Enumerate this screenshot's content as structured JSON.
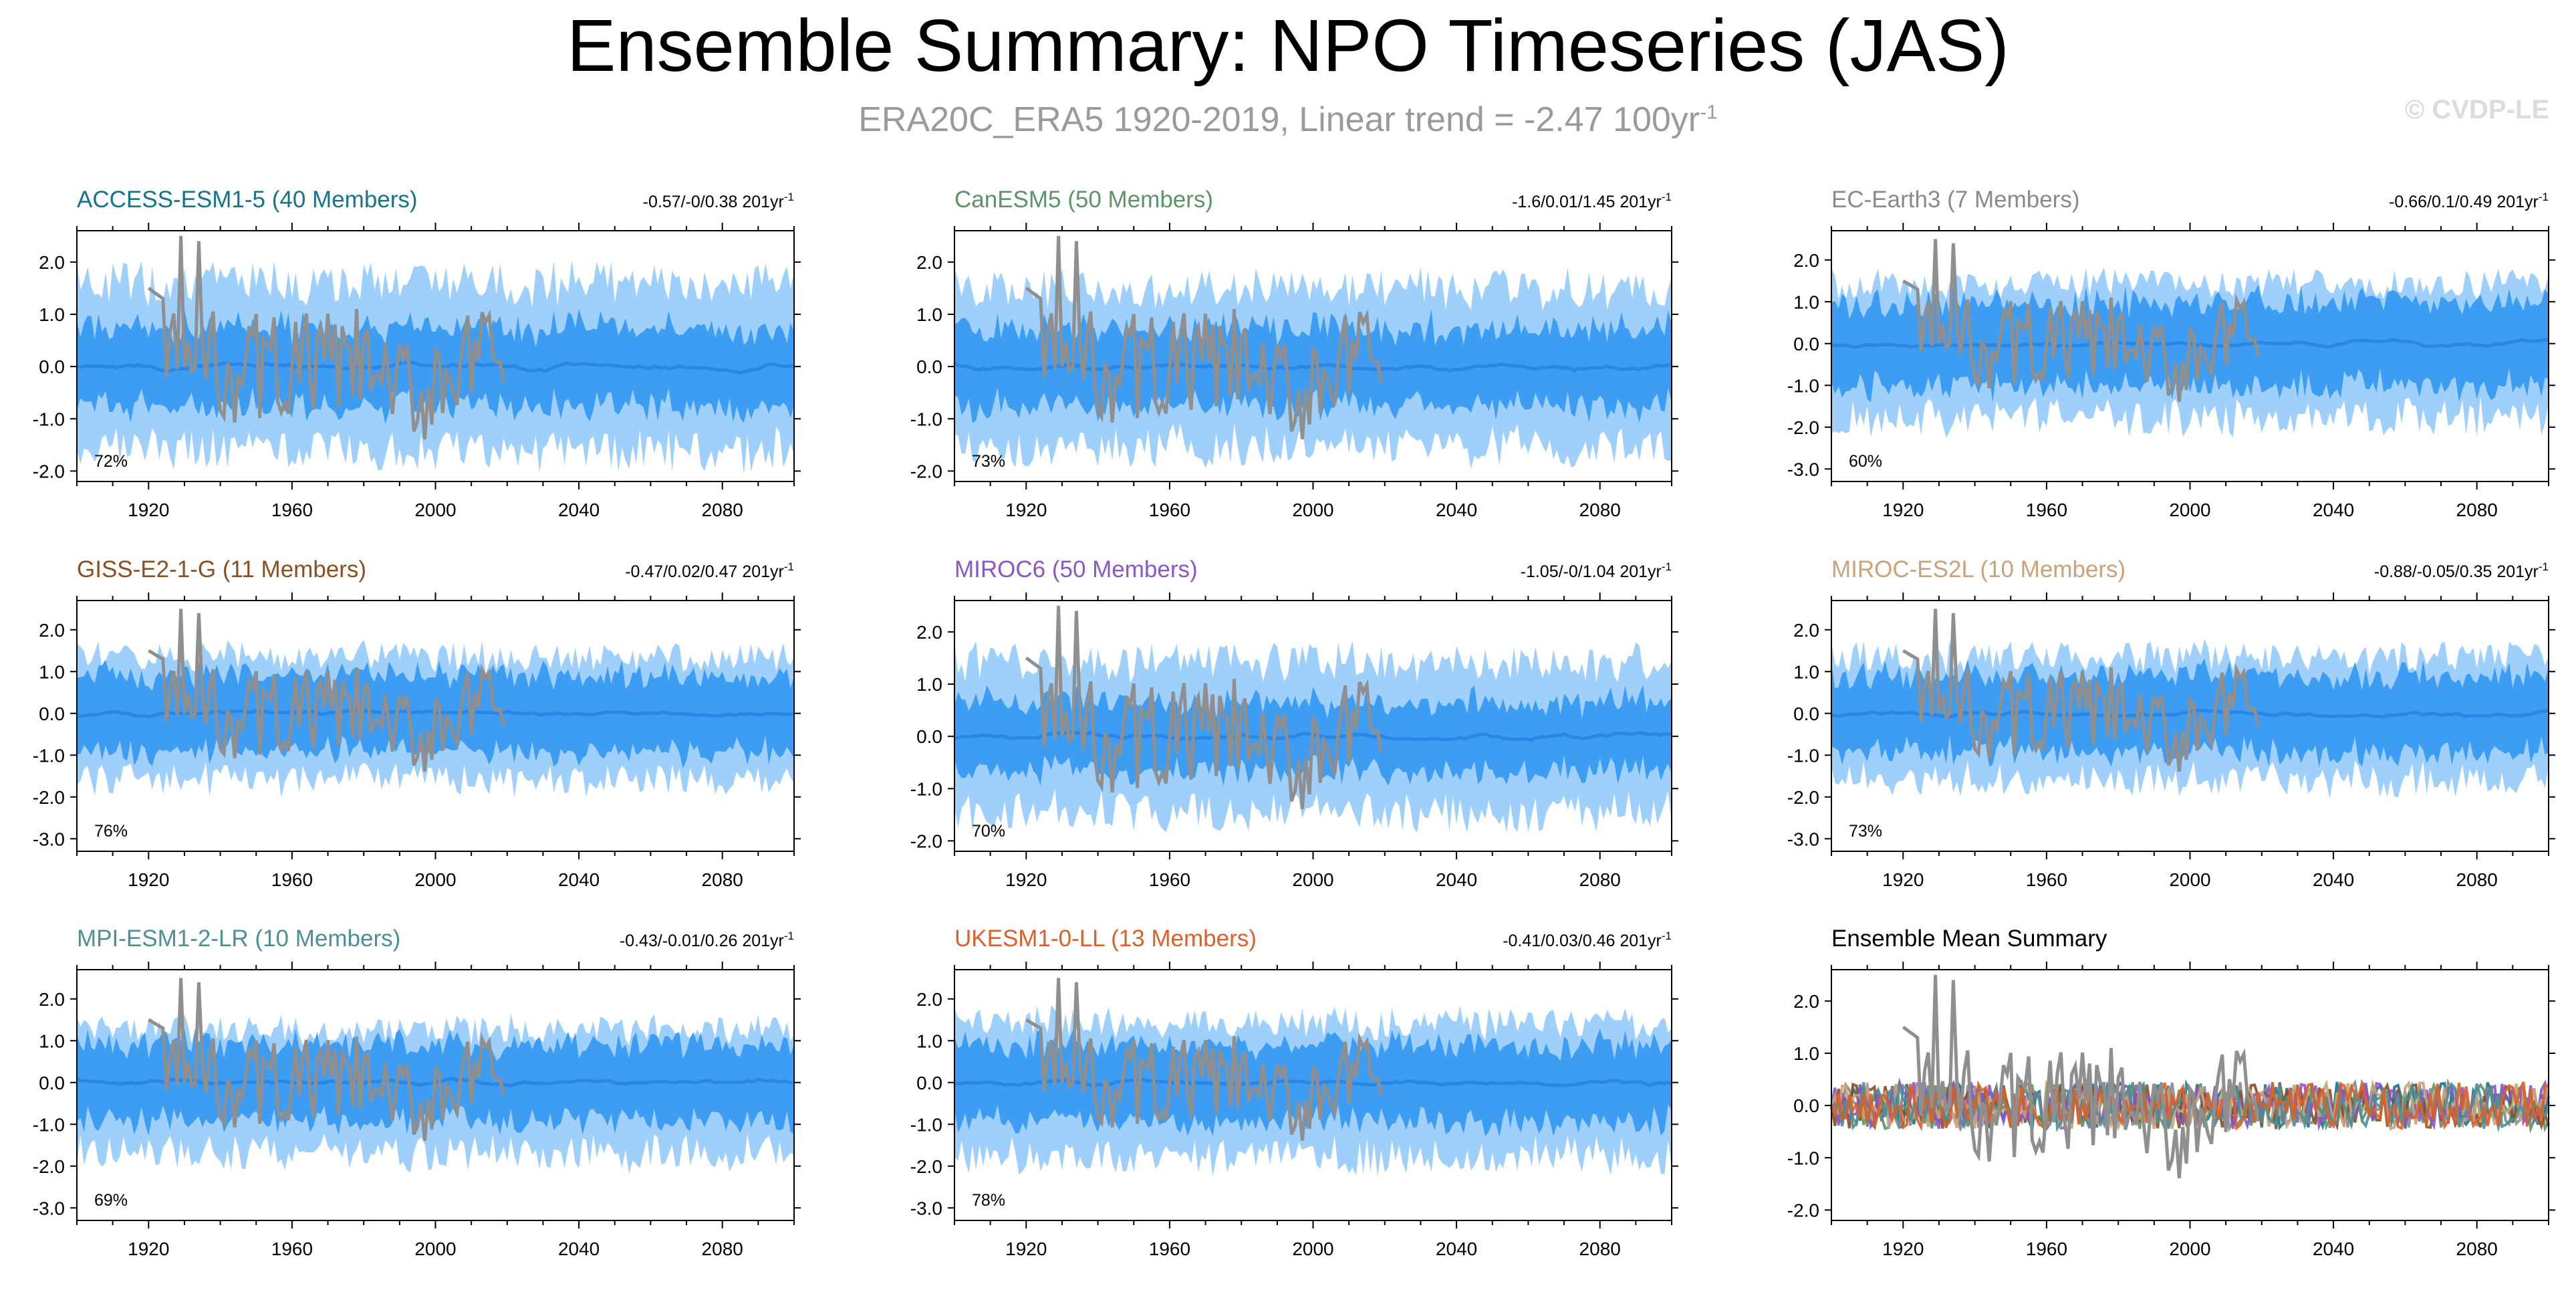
{
  "title": "Ensemble Summary: NPO Timeseries (JAS)",
  "subtitle": {
    "text": "ERA20C_ERA5 1920-2019, Linear trend = -2.47 100yr",
    "sup": "-1"
  },
  "watermark": "© CVDP-LE",
  "colors": {
    "band_outer": "#9fd0fb",
    "band_inner": "#3c9df2",
    "ens_mean": "#2b86e6",
    "obs": "#8f8f8f",
    "axis": "#000000"
  },
  "obs_note": "observed (grey) series drawn 1920-2019 in every panel",
  "chart_data": [
    {
      "type": "line",
      "title": "ACCESS-ESM1-5 (40 Members)",
      "title_color": "#16748a",
      "trend": "-0.57/-0/0.38 201yr",
      "trend_sup": "-1",
      "percent": "72%",
      "xlim": [
        1900,
        2100
      ],
      "ylim": [
        -2.2,
        2.6
      ],
      "yticks": [
        "2.0",
        "1.0",
        "0.0",
        "-1.0",
        "-2.0"
      ],
      "ytick_values": [
        2,
        1,
        0,
        -1,
        -2
      ],
      "xticks": [
        "1920",
        "1960",
        "2000",
        "2040",
        "2080"
      ],
      "ensemble_envelope": {
        "outer_range": [
          -2.0,
          2.0
        ],
        "inner_range": [
          -0.9,
          0.9
        ]
      }
    },
    {
      "type": "line",
      "title": "CanESM5 (50 Members)",
      "title_color": "#5c946a",
      "trend": "-1.6/0.01/1.45 201yr",
      "trend_sup": "-1",
      "percent": "73%",
      "xlim": [
        1900,
        2100
      ],
      "ylim": [
        -2.2,
        2.6
      ],
      "yticks": [
        "2.0",
        "1.0",
        "0.0",
        "-1.0",
        "-2.0"
      ],
      "ytick_values": [
        2,
        1,
        0,
        -1,
        -2
      ],
      "xticks": [
        "1920",
        "1960",
        "2000",
        "2040",
        "2080"
      ],
      "ensemble_envelope": {
        "outer_range": [
          -1.9,
          1.9
        ],
        "inner_range": [
          -0.9,
          0.9
        ]
      }
    },
    {
      "type": "line",
      "title": "EC-Earth3 (7 Members)",
      "title_color": "#8a8a8a",
      "trend": "-0.66/0.1/0.49 201yr",
      "trend_sup": "-1",
      "percent": "60%",
      "xlim": [
        1900,
        2100
      ],
      "ylim": [
        -3.3,
        2.7
      ],
      "yticks": [
        "2.0",
        "1.0",
        "0.0",
        "-1.0",
        "-2.0",
        "-3.0"
      ],
      "ytick_values": [
        2,
        1,
        0,
        -1,
        -2,
        -3
      ],
      "xticks": [
        "1920",
        "1960",
        "2000",
        "2040",
        "2080"
      ],
      "ensemble_envelope": {
        "outer_range": [
          -2.2,
          1.8
        ],
        "inner_range": [
          -1.2,
          1.2
        ]
      }
    },
    {
      "type": "line",
      "title": "GISS-E2-1-G (11 Members)",
      "title_color": "#8a4f22",
      "trend": "-0.47/0.02/0.47 201yr",
      "trend_sup": "-1",
      "percent": "76%",
      "xlim": [
        1900,
        2100
      ],
      "ylim": [
        -3.3,
        2.7
      ],
      "yticks": [
        "2.0",
        "1.0",
        "0.0",
        "-1.0",
        "-2.0",
        "-3.0"
      ],
      "ytick_values": [
        2,
        1,
        0,
        -1,
        -2,
        -3
      ],
      "xticks": [
        "1920",
        "1960",
        "2000",
        "2040",
        "2080"
      ],
      "ensemble_envelope": {
        "outer_range": [
          -2.0,
          1.7
        ],
        "inner_range": [
          -1.1,
          1.1
        ]
      }
    },
    {
      "type": "line",
      "title": "MIROC6 (50 Members)",
      "title_color": "#8a56c9",
      "trend": "-1.05/-0/1.04 201yr",
      "trend_sup": "-1",
      "percent": "70%",
      "xlim": [
        1900,
        2100
      ],
      "ylim": [
        -2.2,
        2.6
      ],
      "yticks": [
        "2.0",
        "1.0",
        "0.0",
        "-1.0",
        "-2.0"
      ],
      "ytick_values": [
        2,
        1,
        0,
        -1,
        -2
      ],
      "xticks": [
        "1920",
        "1960",
        "2000",
        "2040",
        "2080"
      ],
      "ensemble_envelope": {
        "outer_range": [
          -1.8,
          1.8
        ],
        "inner_range": [
          -0.8,
          0.8
        ]
      }
    },
    {
      "type": "line",
      "title": "MIROC-ES2L (10 Members)",
      "title_color": "#c9a37a",
      "trend": "-0.88/-0.05/0.35 201yr",
      "trend_sup": "-1",
      "percent": "73%",
      "xlim": [
        1900,
        2100
      ],
      "ylim": [
        -3.3,
        2.7
      ],
      "yticks": [
        "2.0",
        "1.0",
        "0.0",
        "-1.0",
        "-2.0",
        "-3.0"
      ],
      "ytick_values": [
        2,
        1,
        0,
        -1,
        -2,
        -3
      ],
      "xticks": [
        "1920",
        "1960",
        "2000",
        "2040",
        "2080"
      ],
      "ensemble_envelope": {
        "outer_range": [
          -2.0,
          1.7
        ],
        "inner_range": [
          -1.1,
          1.1
        ]
      }
    },
    {
      "type": "line",
      "title": "MPI-ESM1-2-LR (10 Members)",
      "title_color": "#4e8f94",
      "trend": "-0.43/-0.01/0.26 201yr",
      "trend_sup": "-1",
      "percent": "69%",
      "xlim": [
        1900,
        2100
      ],
      "ylim": [
        -3.3,
        2.7
      ],
      "yticks": [
        "2.0",
        "1.0",
        "0.0",
        "-1.0",
        "-2.0",
        "-3.0"
      ],
      "ytick_values": [
        2,
        1,
        0,
        -1,
        -2,
        -3
      ],
      "xticks": [
        "1920",
        "1960",
        "2000",
        "2040",
        "2080"
      ],
      "ensemble_envelope": {
        "outer_range": [
          -2.1,
          1.6
        ],
        "inner_range": [
          -1.1,
          1.1
        ]
      }
    },
    {
      "type": "line",
      "title": "UKESM1-0-LL (13 Members)",
      "title_color": "#d9612a",
      "trend": "-0.41/0.03/0.46 201yr",
      "trend_sup": "-1",
      "percent": "78%",
      "xlim": [
        1900,
        2100
      ],
      "ylim": [
        -3.3,
        2.7
      ],
      "yticks": [
        "2.0",
        "1.0",
        "0.0",
        "-1.0",
        "-2.0",
        "-3.0"
      ],
      "ytick_values": [
        2,
        1,
        0,
        -1,
        -2,
        -3
      ],
      "xticks": [
        "1920",
        "1960",
        "2000",
        "2040",
        "2080"
      ],
      "ensemble_envelope": {
        "outer_range": [
          -2.2,
          1.8
        ],
        "inner_range": [
          -1.1,
          1.1
        ]
      }
    },
    {
      "type": "line",
      "title": "Ensemble Mean Summary",
      "title_color": "#000000",
      "trend": "",
      "trend_sup": "",
      "percent": "",
      "xlim": [
        1900,
        2100
      ],
      "ylim": [
        -2.2,
        2.6
      ],
      "yticks": [
        "2.0",
        "1.0",
        "0.0",
        "-1.0",
        "-2.0"
      ],
      "ytick_values": [
        2,
        1,
        0,
        -1,
        -2
      ],
      "xticks": [
        "1920",
        "1960",
        "2000",
        "2040",
        "2080"
      ],
      "summary": true,
      "summary_colors": [
        "#16748a",
        "#5c946a",
        "#8a8a8a",
        "#8a4f22",
        "#8a56c9",
        "#c9a37a",
        "#4e8f94",
        "#d9612a"
      ]
    }
  ]
}
